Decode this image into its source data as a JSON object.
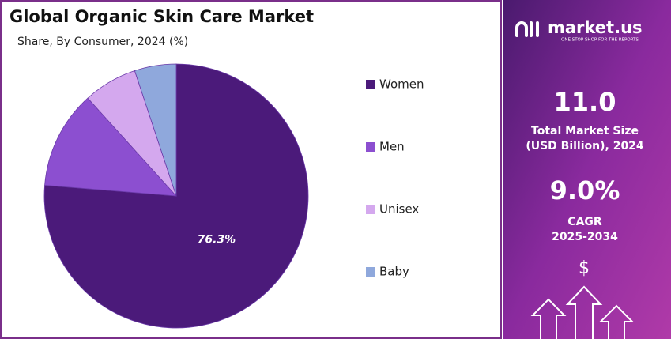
{
  "chart_data": {
    "type": "pie",
    "title": "Global Organic Skin Care Market",
    "subtitle": "Share, By Consumer, 2024 (%)",
    "categories": [
      "Women",
      "Men",
      "Unisex",
      "Baby"
    ],
    "values": [
      76.3,
      12,
      6.6,
      5.1
    ],
    "value_labels": [
      "76.3%",
      null,
      null,
      null
    ],
    "colors": [
      "#4b1a7a",
      "#8c4fd0",
      "#d4a8ee",
      "#8fa8dc"
    ],
    "legend": "right"
  },
  "sidebar": {
    "brand": "market.us",
    "tagline": "ONE STOP SHOP FOR THE REPORTS",
    "stats": [
      {
        "value": "11.0",
        "label_lines": [
          "Total Market Size",
          "(USD Billion), 2024"
        ]
      },
      {
        "value": "9.0%",
        "label_lines": [
          "CAGR",
          "2025-2034"
        ]
      }
    ]
  }
}
